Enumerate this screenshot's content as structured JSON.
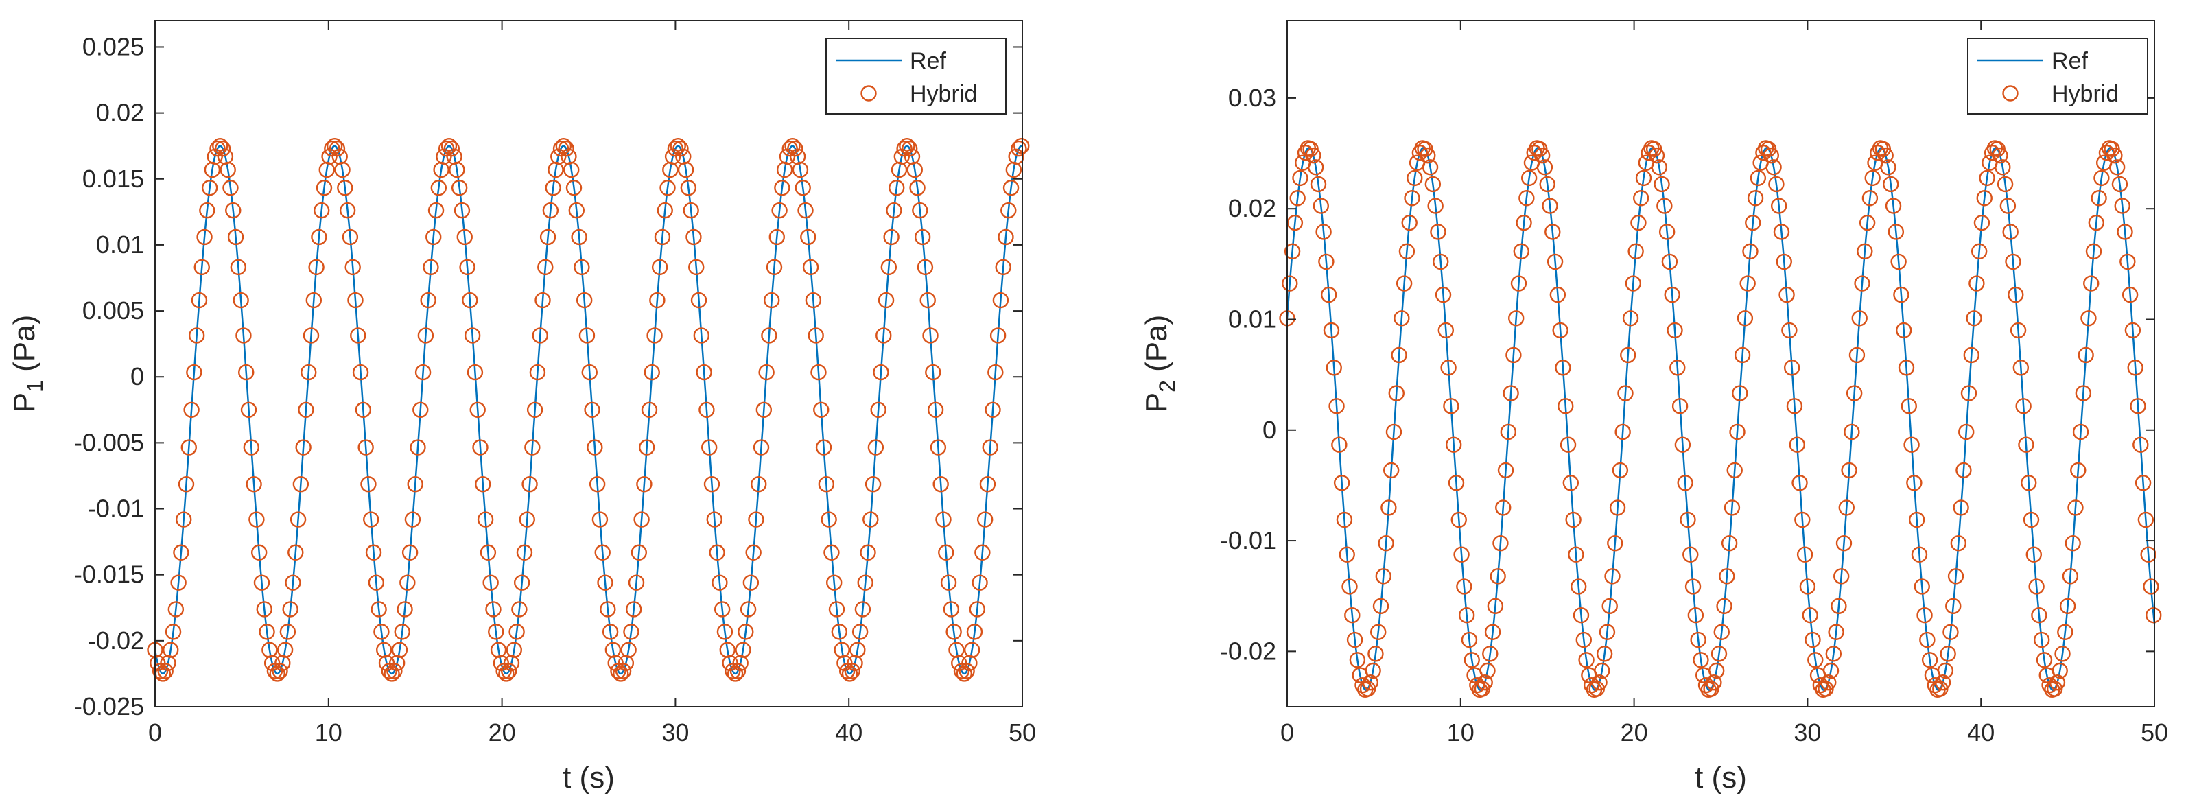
{
  "colors": {
    "ref": "#0072BD",
    "hybrid": "#D95319",
    "axis": "#262626",
    "background": "#ffffff"
  },
  "chart_data": [
    {
      "type": "line",
      "title": "",
      "xlabel": "t (s)",
      "ylabel_main": "P",
      "ylabel_sub": "1",
      "ylabel_unit": " (Pa)",
      "xlim": [
        0,
        50
      ],
      "ylim": [
        -0.025,
        0.027
      ],
      "xticks": [
        0,
        10,
        20,
        30,
        40,
        50
      ],
      "xtick_labels": [
        "0",
        "10",
        "20",
        "30",
        "40",
        "50"
      ],
      "yticks": [
        -0.025,
        -0.02,
        -0.015,
        -0.01,
        -0.005,
        0,
        0.005,
        0.01,
        0.015,
        0.02,
        0.025
      ],
      "ytick_labels": [
        "-0.025",
        "-0.02",
        "-0.015",
        "-0.01",
        "-0.005",
        "0",
        "0.005",
        "0.01",
        "0.015",
        "0.02",
        "0.025"
      ],
      "grid": false,
      "legend_position": "top-right",
      "signal": {
        "offset": -0.0025,
        "amplitude": 0.02,
        "period": 6.6,
        "peak_time": 3.75,
        "t_start": 0,
        "t_end": 50,
        "marker_step": 0.15
      },
      "series": [
        {
          "name": "Ref",
          "style": "line"
        },
        {
          "name": "Hybrid",
          "style": "circle-marker"
        }
      ]
    },
    {
      "type": "line",
      "title": "",
      "xlabel": "t (s)",
      "ylabel_main": "P",
      "ylabel_sub": "2",
      "ylabel_unit": " (Pa)",
      "xlim": [
        0,
        50
      ],
      "ylim": [
        -0.025,
        0.037
      ],
      "xticks": [
        0,
        10,
        20,
        30,
        40,
        50
      ],
      "xtick_labels": [
        "0",
        "10",
        "20",
        "30",
        "40",
        "50"
      ],
      "yticks": [
        -0.02,
        -0.01,
        0,
        0.01,
        0.02,
        0.03
      ],
      "ytick_labels": [
        "-0.02",
        "-0.01",
        "0",
        "0.01",
        "0.02",
        "0.03"
      ],
      "grid": false,
      "legend_position": "top-right",
      "signal": {
        "offset": 0.001,
        "amplitude": 0.0245,
        "period": 6.6,
        "peak_time": 1.25,
        "t_start": 0,
        "t_end": 50,
        "marker_step": 0.15
      },
      "series": [
        {
          "name": "Ref",
          "style": "line"
        },
        {
          "name": "Hybrid",
          "style": "circle-marker"
        }
      ]
    }
  ]
}
